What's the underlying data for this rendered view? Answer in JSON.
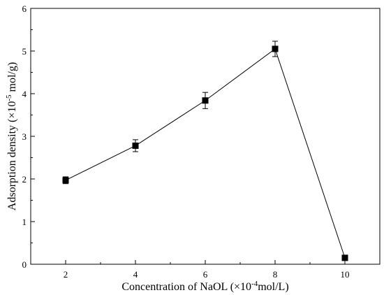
{
  "chart_data": {
    "type": "scatter",
    "title": "",
    "xlabel": {
      "prefix": "Concentration of NaOL (×10",
      "sup": "-4",
      "suffix": "mol/L)"
    },
    "ylabel": {
      "prefix": "Adsorption density (×10",
      "sup": "-5",
      "suffix": " mol/g)"
    },
    "xlim": [
      1,
      11
    ],
    "ylim": [
      0,
      6
    ],
    "xticks": [
      2,
      4,
      6,
      8,
      10
    ],
    "yticks": [
      0,
      1,
      2,
      3,
      4,
      5,
      6
    ],
    "grid": false,
    "series": [
      {
        "marker": "square",
        "line": true,
        "color": "#000000",
        "x": [
          2,
          4,
          6,
          8,
          10
        ],
        "y": [
          1.97,
          2.78,
          3.84,
          5.05,
          0.15
        ],
        "error": [
          0.08,
          0.14,
          0.19,
          0.18,
          0.0
        ]
      }
    ]
  }
}
